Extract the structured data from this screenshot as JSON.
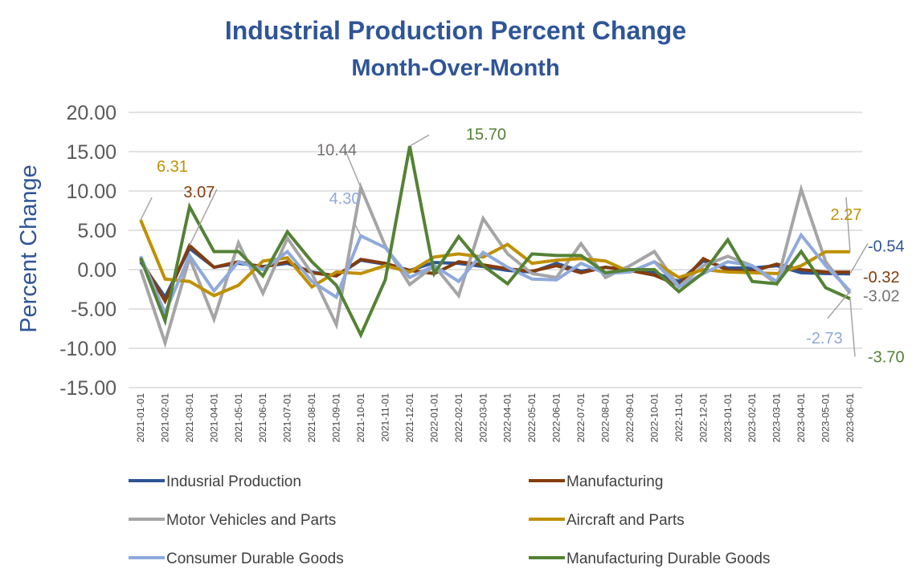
{
  "chart_data": {
    "type": "line",
    "title": "Industrial Production Percent Change",
    "subtitle": "Month-Over-Month",
    "xlabel": "",
    "ylabel": "Percent Change",
    "ylim": [
      -15,
      20
    ],
    "yticks": [
      "20.00",
      "15.00",
      "10.00",
      "5.00",
      "0.00",
      "-5.00",
      "-10.00",
      "-15.00"
    ],
    "ytick_values": [
      20,
      15,
      10,
      5,
      0,
      -5,
      -10,
      -15
    ],
    "grid": true,
    "legend": "bottom",
    "categories": [
      "2021-01-01",
      "2021-02-01",
      "2021-03-01",
      "2021-04-01",
      "2021-05-01",
      "2021-06-01",
      "2021-07-01",
      "2021-08-01",
      "2021-09-01",
      "2021-10-01",
      "2021-11-01",
      "2021-12-01",
      "2022-01-01",
      "2022-02-01",
      "2022-03-01",
      "2022-04-01",
      "2022-05-01",
      "2022-06-01",
      "2022-07-01",
      "2022-08-01",
      "2022-09-01",
      "2022-10-01",
      "2022-11-01",
      "2022-12-01",
      "2023-01-01",
      "2023-02-01",
      "2023-03-01",
      "2023-04-01",
      "2023-05-01",
      "2023-06-01"
    ],
    "series": [
      {
        "name": "Indusrial Production",
        "color": "#2F5597",
        "values": [
          1.0,
          -3.5,
          2.7,
          0.3,
          0.8,
          0.4,
          0.8,
          -0.3,
          -0.8,
          1.2,
          0.7,
          -0.1,
          0.9,
          0.8,
          0.4,
          -0.1,
          -0.3,
          0.8,
          -0.2,
          0.3,
          0.0,
          -0.4,
          -1.5,
          1.1,
          0.2,
          0.2,
          0.5,
          -0.4,
          -0.5,
          -0.54
        ]
      },
      {
        "name": "Manufacturing",
        "color": "#843C0C",
        "values": [
          1.3,
          -4.0,
          3.07,
          0.3,
          1.0,
          0.3,
          1.0,
          -0.4,
          -0.8,
          1.3,
          0.8,
          -0.1,
          -0.5,
          1.0,
          0.6,
          0.1,
          -0.2,
          0.5,
          -0.4,
          0.3,
          -0.1,
          -0.7,
          -2.0,
          1.4,
          -0.1,
          -0.2,
          0.7,
          0.0,
          -0.3,
          -0.32
        ]
      },
      {
        "name": "Motor Vehicles and Parts",
        "color": "#A5A5A5",
        "values": [
          0.0,
          -9.3,
          1.5,
          -6.3,
          3.4,
          -3.0,
          4.0,
          -0.5,
          -7.0,
          10.44,
          3.0,
          -1.9,
          0.5,
          -3.3,
          6.5,
          2.0,
          -0.5,
          -1.0,
          3.3,
          -1.0,
          0.5,
          2.3,
          -2.2,
          0.5,
          1.7,
          0.5,
          -1.8,
          10.2,
          1.0,
          -3.02
        ]
      },
      {
        "name": "Aircraft and Parts",
        "color": "#BF9000",
        "values": [
          6.31,
          -1.2,
          -1.5,
          -3.3,
          -2.0,
          1.1,
          1.5,
          -2.2,
          -0.3,
          -0.5,
          0.5,
          -0.3,
          1.6,
          2.0,
          1.6,
          3.2,
          0.8,
          1.2,
          1.4,
          1.1,
          -0.3,
          1.0,
          -1.0,
          0.0,
          -0.3,
          -0.4,
          -0.5,
          0.5,
          2.27,
          2.27
        ]
      },
      {
        "name": "Consumer Durable Goods",
        "color": "#8FAADC",
        "values": [
          1.7,
          -5.5,
          1.8,
          -2.7,
          1.0,
          0.0,
          2.3,
          -1.5,
          -3.5,
          4.3,
          2.8,
          -1.0,
          0.5,
          -1.5,
          2.2,
          0.3,
          -1.2,
          -1.3,
          0.8,
          -0.5,
          -0.3,
          1.0,
          -2.2,
          -0.5,
          1.0,
          0.5,
          -1.5,
          4.4,
          0.5,
          -2.73
        ]
      },
      {
        "name": "Manufacturing Durable Goods",
        "color": "#548235",
        "values": [
          1.5,
          -6.5,
          8.0,
          2.3,
          2.3,
          -0.8,
          4.8,
          1.0,
          -2.0,
          -8.3,
          -1.3,
          15.7,
          -0.5,
          4.2,
          0.5,
          -1.8,
          2.0,
          1.8,
          1.8,
          -0.4,
          0.0,
          0.0,
          -2.8,
          -0.4,
          3.8,
          -1.5,
          -1.8,
          2.3,
          -2.3,
          -3.7
        ]
      }
    ],
    "data_labels": [
      {
        "series": 3,
        "index": 0,
        "text": "6.31"
      },
      {
        "series": 1,
        "index": 2,
        "text": "3.07"
      },
      {
        "series": 2,
        "index": 9,
        "text": "10.44"
      },
      {
        "series": 4,
        "index": 9,
        "text": "4.30"
      },
      {
        "series": 5,
        "index": 11,
        "text": "15.70"
      },
      {
        "series": 3,
        "index": 29,
        "text": "2.27"
      },
      {
        "series": 0,
        "index": 29,
        "text": "-0.54"
      },
      {
        "series": 1,
        "index": 29,
        "text": "-0.32"
      },
      {
        "series": 2,
        "index": 29,
        "text": "-3.02"
      },
      {
        "series": 4,
        "index": 29,
        "text": "-2.73"
      },
      {
        "series": 5,
        "index": 29,
        "text": "-3.70"
      }
    ]
  }
}
